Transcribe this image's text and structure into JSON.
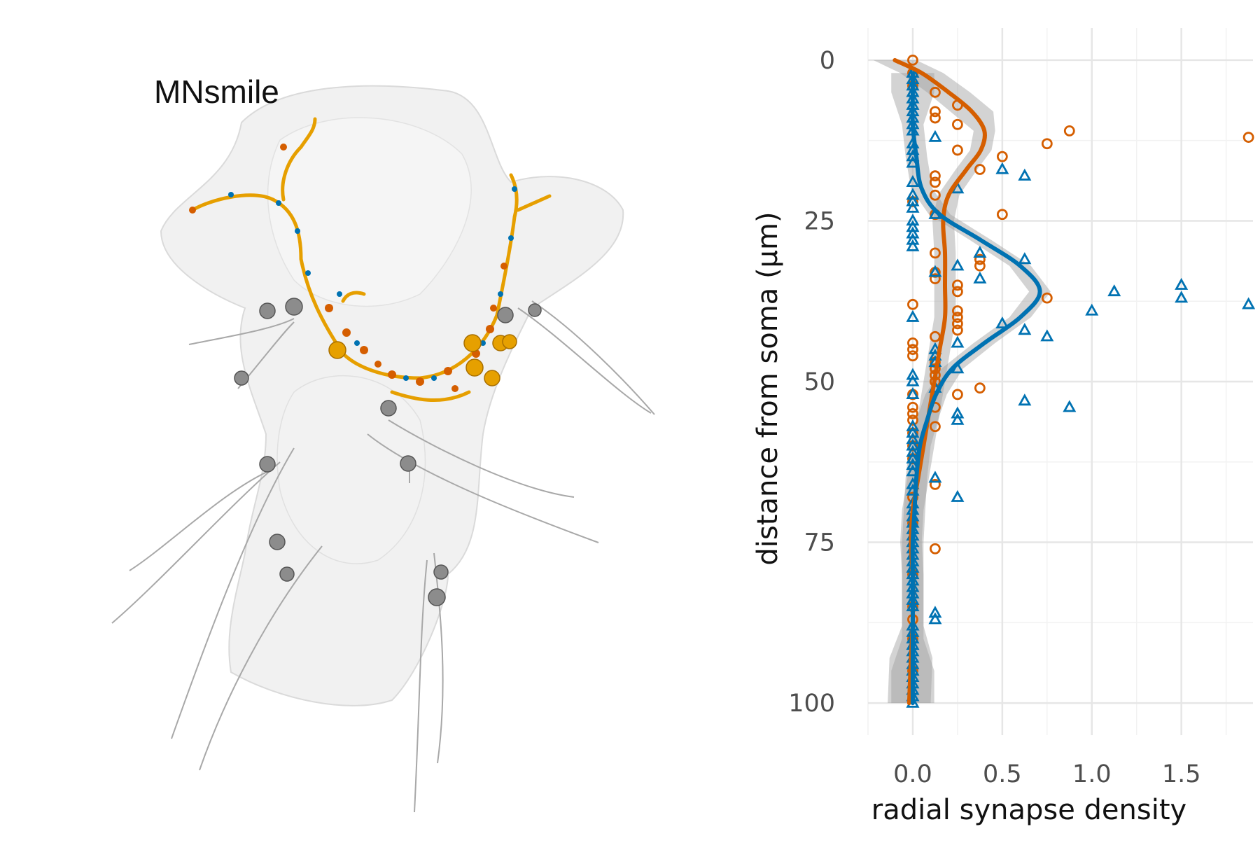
{
  "render_panel": {
    "title": "MNsmile",
    "neuron_color": "#E69F00",
    "presynapse_color": "#D55E00",
    "postsynapse_color": "#0072B2",
    "outline_color": "#d4d4d4",
    "other_neuron_color": "#9a9a9a"
  },
  "chart_data": {
    "type": "scatter",
    "xlabel": "radial synapse density",
    "ylabel": "distance from soma (μm)",
    "xlim": [
      -0.25,
      1.9
    ],
    "ylim": [
      -5,
      105
    ],
    "y_reversed": true,
    "grid": true,
    "x_ticks": [
      0.0,
      0.5,
      1.0,
      1.5
    ],
    "x_tick_labels": [
      "0.0",
      "0.5",
      "1.0",
      "1.5"
    ],
    "y_ticks": [
      0,
      25,
      50,
      75,
      100
    ],
    "y_tick_labels": [
      "0",
      "25",
      "50",
      "75",
      "100"
    ],
    "series": [
      {
        "marker": "circle",
        "color": "#D55E00",
        "points": [
          [
            0.0,
            0
          ],
          [
            0.0,
            2
          ],
          [
            0.0,
            4
          ],
          [
            0.125,
            5
          ],
          [
            0.25,
            7
          ],
          [
            0.125,
            8
          ],
          [
            0.125,
            9
          ],
          [
            0.25,
            10
          ],
          [
            0.875,
            11
          ],
          [
            1.875,
            12
          ],
          [
            0.75,
            13
          ],
          [
            0.25,
            14
          ],
          [
            0.5,
            15
          ],
          [
            0.375,
            17
          ],
          [
            0.125,
            18
          ],
          [
            0.125,
            19
          ],
          [
            0.125,
            21
          ],
          [
            0.0,
            22
          ],
          [
            0.5,
            24
          ],
          [
            0.125,
            24
          ],
          [
            0.125,
            30
          ],
          [
            0.375,
            31
          ],
          [
            0.375,
            32
          ],
          [
            0.125,
            33
          ],
          [
            0.125,
            34
          ],
          [
            0.25,
            35
          ],
          [
            0.25,
            36
          ],
          [
            0.75,
            37
          ],
          [
            0.0,
            38
          ],
          [
            0.25,
            39
          ],
          [
            0.25,
            40
          ],
          [
            0.25,
            41
          ],
          [
            0.25,
            42
          ],
          [
            0.125,
            43
          ],
          [
            0.0,
            44
          ],
          [
            0.0,
            45
          ],
          [
            0.0,
            46
          ],
          [
            0.125,
            47
          ],
          [
            0.125,
            48
          ],
          [
            0.125,
            49
          ],
          [
            0.125,
            50
          ],
          [
            0.375,
            51
          ],
          [
            0.0,
            52
          ],
          [
            0.25,
            52
          ],
          [
            0.0,
            54
          ],
          [
            0.125,
            54
          ],
          [
            0.0,
            55
          ],
          [
            0.0,
            56
          ],
          [
            0.125,
            57
          ],
          [
            0.0,
            58
          ],
          [
            0.0,
            60
          ],
          [
            0.0,
            62
          ],
          [
            0.125,
            66
          ],
          [
            0.0,
            68
          ],
          [
            0.0,
            72
          ],
          [
            0.125,
            76
          ],
          [
            0.0,
            80
          ],
          [
            0.0,
            85
          ],
          [
            0.0,
            87
          ],
          [
            0.0,
            90
          ],
          [
            0.0,
            95
          ]
        ],
        "smooth": [
          [
            -0.1,
            0
          ],
          [
            0.05,
            2
          ],
          [
            0.2,
            5
          ],
          [
            0.33,
            8
          ],
          [
            0.4,
            11
          ],
          [
            0.38,
            14
          ],
          [
            0.3,
            17
          ],
          [
            0.2,
            21
          ],
          [
            0.17,
            25
          ],
          [
            0.18,
            30
          ],
          [
            0.18,
            35
          ],
          [
            0.18,
            40
          ],
          [
            0.15,
            45
          ],
          [
            0.12,
            50
          ],
          [
            0.09,
            55
          ],
          [
            0.06,
            60
          ],
          [
            0.03,
            65
          ],
          [
            0.0,
            70
          ],
          [
            -0.01,
            75
          ],
          [
            0.0,
            80
          ],
          [
            0.0,
            85
          ],
          [
            0.0,
            88
          ],
          [
            -0.01,
            93
          ],
          [
            -0.02,
            100
          ]
        ]
      },
      {
        "marker": "triangle",
        "color": "#0072B2",
        "points": [
          [
            0.0,
            2
          ],
          [
            0.0,
            3
          ],
          [
            0.0,
            4
          ],
          [
            0.0,
            5
          ],
          [
            0.0,
            6
          ],
          [
            0.0,
            7
          ],
          [
            0.0,
            8
          ],
          [
            0.0,
            9
          ],
          [
            0.0,
            10
          ],
          [
            0.0,
            11
          ],
          [
            0.125,
            12
          ],
          [
            0.0,
            13
          ],
          [
            0.0,
            14
          ],
          [
            0.0,
            15
          ],
          [
            0.0,
            16
          ],
          [
            0.5,
            17
          ],
          [
            0.625,
            18
          ],
          [
            0.0,
            19
          ],
          [
            0.25,
            20
          ],
          [
            0.0,
            21
          ],
          [
            0.0,
            22
          ],
          [
            0.0,
            23
          ],
          [
            0.125,
            24
          ],
          [
            0.0,
            25
          ],
          [
            0.0,
            26
          ],
          [
            0.0,
            27
          ],
          [
            0.0,
            28
          ],
          [
            0.0,
            29
          ],
          [
            0.375,
            30
          ],
          [
            0.625,
            31
          ],
          [
            0.25,
            32
          ],
          [
            0.125,
            33
          ],
          [
            0.375,
            34
          ],
          [
            1.5,
            35
          ],
          [
            1.125,
            36
          ],
          [
            1.5,
            37
          ],
          [
            1.875,
            38
          ],
          [
            1.0,
            39
          ],
          [
            0.0,
            40
          ],
          [
            0.5,
            41
          ],
          [
            0.625,
            42
          ],
          [
            0.75,
            43
          ],
          [
            0.25,
            44
          ],
          [
            0.125,
            45
          ],
          [
            0.125,
            46
          ],
          [
            0.125,
            47
          ],
          [
            0.25,
            48
          ],
          [
            0.0,
            49
          ],
          [
            0.0,
            50
          ],
          [
            0.125,
            51
          ],
          [
            0.0,
            52
          ],
          [
            0.625,
            53
          ],
          [
            0.875,
            54
          ],
          [
            0.25,
            55
          ],
          [
            0.25,
            56
          ],
          [
            0.0,
            57
          ],
          [
            0.0,
            58
          ],
          [
            0.0,
            59
          ],
          [
            0.0,
            60
          ],
          [
            0.0,
            61
          ],
          [
            0.0,
            62
          ],
          [
            0.0,
            63
          ],
          [
            0.0,
            64
          ],
          [
            0.125,
            65
          ],
          [
            0.0,
            66
          ],
          [
            0.0,
            67
          ],
          [
            0.25,
            68
          ],
          [
            0.0,
            69
          ],
          [
            0.0,
            70
          ],
          [
            0.0,
            71
          ],
          [
            0.0,
            72
          ],
          [
            0.0,
            73
          ],
          [
            0.0,
            74
          ],
          [
            0.0,
            75
          ],
          [
            0.0,
            76
          ],
          [
            0.0,
            77
          ],
          [
            0.0,
            78
          ],
          [
            0.0,
            79
          ],
          [
            0.0,
            80
          ],
          [
            0.0,
            81
          ],
          [
            0.0,
            82
          ],
          [
            0.0,
            83
          ],
          [
            0.0,
            84
          ],
          [
            0.0,
            85
          ],
          [
            0.125,
            86
          ],
          [
            0.125,
            87
          ],
          [
            0.0,
            88
          ],
          [
            0.0,
            89
          ],
          [
            0.0,
            90
          ],
          [
            0.0,
            91
          ],
          [
            0.0,
            92
          ],
          [
            0.0,
            93
          ],
          [
            0.0,
            94
          ],
          [
            0.0,
            95
          ],
          [
            0.0,
            96
          ],
          [
            0.0,
            97
          ],
          [
            0.0,
            98
          ],
          [
            0.0,
            99
          ],
          [
            0.0,
            100
          ]
        ],
        "smooth": [
          [
            0.0,
            2
          ],
          [
            0.0,
            5
          ],
          [
            0.0,
            10
          ],
          [
            0.02,
            15
          ],
          [
            0.05,
            20
          ],
          [
            0.15,
            24
          ],
          [
            0.38,
            28
          ],
          [
            0.6,
            32
          ],
          [
            0.71,
            36
          ],
          [
            0.6,
            40
          ],
          [
            0.4,
            44
          ],
          [
            0.22,
            48
          ],
          [
            0.13,
            52
          ],
          [
            0.08,
            56
          ],
          [
            0.04,
            60
          ],
          [
            0.02,
            65
          ],
          [
            0.01,
            70
          ],
          [
            0.0,
            75
          ],
          [
            0.0,
            80
          ],
          [
            0.0,
            85
          ],
          [
            0.0,
            90
          ],
          [
            0.0,
            95
          ],
          [
            0.0,
            100
          ]
        ]
      }
    ]
  }
}
